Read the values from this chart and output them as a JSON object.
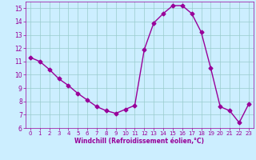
{
  "x": [
    0,
    1,
    2,
    3,
    4,
    5,
    6,
    7,
    8,
    9,
    10,
    11,
    12,
    13,
    14,
    15,
    16,
    17,
    18,
    19,
    20,
    21,
    22,
    23
  ],
  "y": [
    11.3,
    11.0,
    10.4,
    9.7,
    9.2,
    8.6,
    8.1,
    7.6,
    7.3,
    7.1,
    7.4,
    7.7,
    11.9,
    13.9,
    14.6,
    15.2,
    15.2,
    14.6,
    13.2,
    10.5,
    7.6,
    7.3,
    6.4,
    7.8
  ],
  "line_color": "#990099",
  "marker": "D",
  "marker_size": 2.5,
  "bg_color": "#cceeff",
  "grid_color": "#99cccc",
  "xlabel": "Windchill (Refroidissement éolien,°C)",
  "xlabel_color": "#990099",
  "tick_color": "#990099",
  "ylim": [
    6,
    15.5
  ],
  "xlim": [
    -0.5,
    23.5
  ],
  "yticks": [
    6,
    7,
    8,
    9,
    10,
    11,
    12,
    13,
    14,
    15
  ],
  "xticks": [
    0,
    1,
    2,
    3,
    4,
    5,
    6,
    7,
    8,
    9,
    10,
    11,
    12,
    13,
    14,
    15,
    16,
    17,
    18,
    19,
    20,
    21,
    22,
    23
  ]
}
